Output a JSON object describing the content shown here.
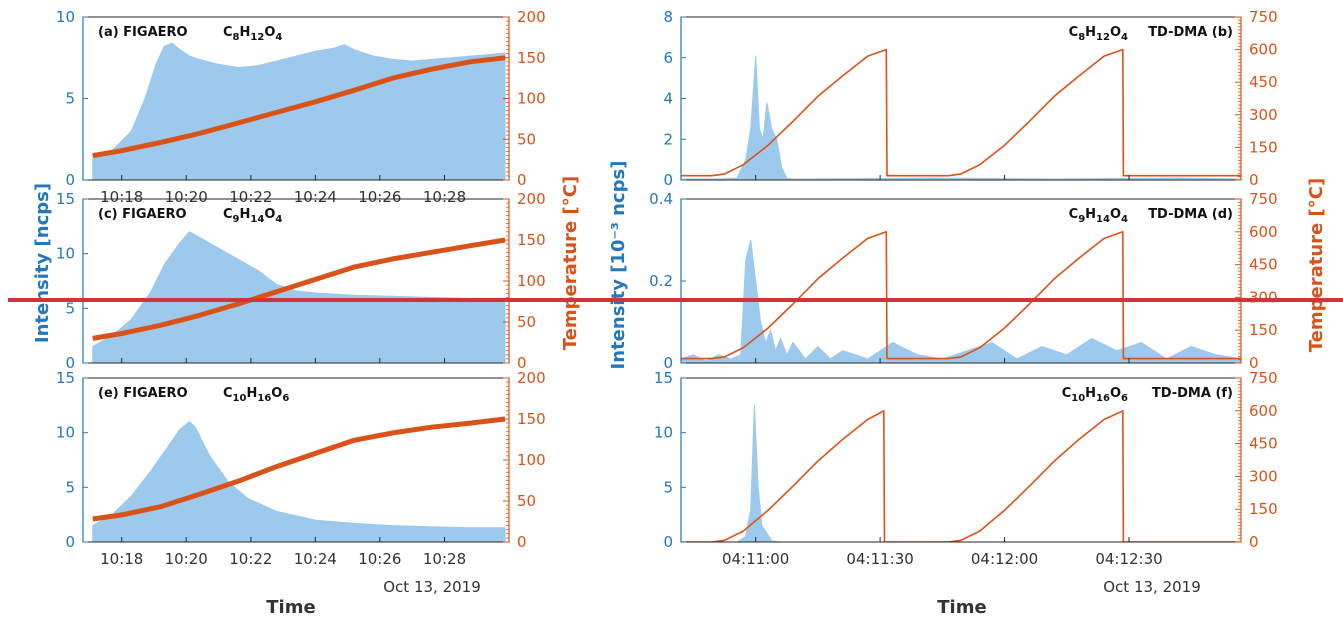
{
  "figure": {
    "ylabel_left": "Intensity [ncps]",
    "ylabel_right": "Temperature [°C]",
    "ylabel_mid": "Intensity [10⁻³ ncps]",
    "ylabel_right2": "Temperature [°C]",
    "xlabel_left": "Time",
    "xlabel_right": "Time",
    "date_left": "Oct 13, 2019",
    "date_right": "Oct 13, 2019",
    "colors": {
      "intensity": "#2477b8",
      "fill": "#9dcaec",
      "temperature": "#d95319",
      "overlay_line": "#d0343a"
    }
  },
  "chart_data": [
    {
      "id": "a",
      "type": "area",
      "label": "(a) FIGAERO",
      "formula": [
        "C",
        "8",
        "H",
        "12",
        "O",
        "4"
      ],
      "xlim": [
        10.28,
        10.5
      ],
      "x_ticks": [
        10.3,
        10.3333,
        10.3667,
        10.4,
        10.4333,
        10.4667
      ],
      "x_tick_labels": [
        "10:18",
        "10:20",
        "10:22",
        "10:24",
        "10:26",
        "10:28"
      ],
      "ylim": [
        0,
        10
      ],
      "y_ticks": [
        0,
        5,
        10
      ],
      "y2lim": [
        0,
        200
      ],
      "y2_ticks": [
        0,
        50,
        100,
        150,
        200
      ],
      "intensity": {
        "x": [
          10.285,
          10.295,
          10.305,
          10.312,
          10.318,
          10.322,
          10.326,
          10.33,
          10.335,
          10.34,
          10.35,
          10.36,
          10.37,
          10.38,
          10.39,
          10.4,
          10.41,
          10.415,
          10.42,
          10.43,
          10.44,
          10.45,
          10.46,
          10.47,
          10.48,
          10.49,
          10.498
        ],
        "y": [
          1.3,
          1.8,
          3.0,
          5.0,
          7.2,
          8.2,
          8.4,
          8.0,
          7.6,
          7.4,
          7.1,
          6.9,
          7.0,
          7.3,
          7.6,
          7.9,
          8.1,
          8.3,
          8.0,
          7.6,
          7.4,
          7.3,
          7.4,
          7.5,
          7.6,
          7.7,
          7.8
        ]
      },
      "temperature": {
        "x": [
          10.285,
          10.3,
          10.32,
          10.34,
          10.36,
          10.38,
          10.4,
          10.42,
          10.44,
          10.46,
          10.48,
          10.498
        ],
        "y": [
          30,
          36,
          46,
          57,
          70,
          83,
          96,
          110,
          125,
          136,
          145,
          150
        ]
      }
    },
    {
      "id": "c",
      "type": "area",
      "label": "(c) FIGAERO",
      "formula": [
        "C",
        "9",
        "H",
        "14",
        "O",
        "4"
      ],
      "xlim": [
        10.28,
        10.5
      ],
      "x_ticks": [
        10.3,
        10.3333,
        10.3667,
        10.4,
        10.4333,
        10.4667
      ],
      "x_tick_labels": [
        "",
        "",
        "",
        "",
        "",
        ""
      ],
      "ylim": [
        0,
        15
      ],
      "y_ticks": [
        0,
        5,
        10,
        15
      ],
      "y2lim": [
        0,
        200
      ],
      "y2_ticks": [
        0,
        50,
        100,
        150,
        200
      ],
      "intensity": {
        "x": [
          10.285,
          10.295,
          10.305,
          10.315,
          10.322,
          10.33,
          10.335,
          10.34,
          10.35,
          10.36,
          10.37,
          10.38,
          10.39,
          10.4,
          10.41,
          10.42,
          10.44,
          10.46,
          10.48,
          10.498
        ],
        "y": [
          1.5,
          2.5,
          4.0,
          6.5,
          9.0,
          11.0,
          12.0,
          11.5,
          10.5,
          9.5,
          8.5,
          7.2,
          6.6,
          6.4,
          6.3,
          6.2,
          6.1,
          6.0,
          5.9,
          5.8
        ]
      },
      "temperature": {
        "x": [
          10.285,
          10.3,
          10.32,
          10.34,
          10.36,
          10.38,
          10.4,
          10.42,
          10.44,
          10.46,
          10.48,
          10.498
        ],
        "y": [
          30,
          36,
          46,
          58,
          72,
          87,
          102,
          117,
          127,
          135,
          143,
          150
        ]
      }
    },
    {
      "id": "e",
      "type": "area",
      "label": "(e) FIGAERO",
      "formula": [
        "C",
        "10",
        "H",
        "16",
        "O",
        "6"
      ],
      "xlim": [
        10.28,
        10.5
      ],
      "x_ticks": [
        10.3,
        10.3333,
        10.3667,
        10.4,
        10.4333,
        10.4667
      ],
      "x_tick_labels": [
        "10:18",
        "10:20",
        "10:22",
        "10:24",
        "10:26",
        "10:28"
      ],
      "ylim": [
        0,
        15
      ],
      "y_ticks": [
        0,
        5,
        10,
        15
      ],
      "y2lim": [
        0,
        200
      ],
      "y2_ticks": [
        0,
        50,
        100,
        150,
        200
      ],
      "intensity": {
        "x": [
          10.285,
          10.295,
          10.305,
          10.315,
          10.325,
          10.33,
          10.335,
          10.338,
          10.345,
          10.355,
          10.365,
          10.38,
          10.4,
          10.42,
          10.44,
          10.46,
          10.48,
          10.498
        ],
        "y": [
          1.5,
          2.5,
          4.2,
          6.5,
          9.0,
          10.3,
          11.0,
          10.5,
          8.0,
          5.5,
          4.0,
          2.8,
          2.0,
          1.7,
          1.5,
          1.4,
          1.3,
          1.3
        ]
      },
      "temperature": {
        "x": [
          10.285,
          10.3,
          10.32,
          10.34,
          10.36,
          10.38,
          10.4,
          10.42,
          10.44,
          10.46,
          10.48,
          10.498
        ],
        "y": [
          28,
          33,
          43,
          58,
          74,
          92,
          108,
          124,
          133,
          140,
          145,
          150
        ]
      }
    },
    {
      "id": "b",
      "type": "area",
      "label": "TD-DMA (b)",
      "formula": [
        "C",
        "8",
        "H",
        "12",
        "O",
        "4"
      ],
      "xlim": [
        245,
        290
      ],
      "x_ticks": [
        251,
        261,
        271,
        281
      ],
      "x_tick_labels": [
        "",
        "",
        "",
        ""
      ],
      "ylim": [
        0,
        8
      ],
      "y_ticks": [
        0,
        2,
        4,
        6,
        8
      ],
      "y2lim": [
        0,
        750
      ],
      "y2_ticks": [
        0,
        150,
        300,
        450,
        600,
        750
      ],
      "intensity": {
        "x": [
          245,
          248,
          249.5,
          250.2,
          250.6,
          251.0,
          251.3,
          251.6,
          251.9,
          252.3,
          252.7,
          253.1,
          253.5,
          254.0,
          255,
          265,
          275,
          285,
          290
        ],
        "y": [
          0.05,
          0.05,
          0.1,
          1.0,
          2.5,
          6.1,
          2.5,
          2.0,
          3.8,
          2.5,
          2.0,
          0.6,
          0.1,
          0.05,
          0.05,
          0.1,
          0.05,
          0.1,
          0.05
        ],
        "tail": "~0.05 until 290"
      },
      "temperature": {
        "x": [
          245,
          247.5,
          248.5,
          250,
          252,
          254,
          256,
          258,
          260,
          261.5,
          261.55,
          266.5,
          267.5,
          269,
          271,
          273,
          275,
          277,
          279,
          280.5,
          280.55,
          290
        ],
        "y": [
          20,
          20,
          28,
          70,
          160,
          270,
          385,
          480,
          570,
          600,
          20,
          20,
          28,
          70,
          160,
          270,
          385,
          480,
          570,
          600,
          20,
          20
        ]
      }
    },
    {
      "id": "d",
      "type": "area",
      "label": "TD-DMA (d)",
      "formula": [
        "C",
        "9",
        "H",
        "14",
        "O",
        "4"
      ],
      "xlim": [
        245,
        290
      ],
      "x_ticks": [
        251,
        261,
        271,
        281
      ],
      "x_tick_labels": [
        "",
        "",
        "",
        ""
      ],
      "ylim": [
        0,
        0.4
      ],
      "y_ticks": [
        0,
        0.2,
        0.4
      ],
      "y2lim": [
        0,
        750
      ],
      "y2_ticks": [
        0,
        150,
        300,
        450,
        600,
        750
      ],
      "intensity": {
        "x": [
          245,
          246,
          247,
          248,
          249,
          249.8,
          250.2,
          250.6,
          251.0,
          251.4,
          251.8,
          252.2,
          252.6,
          253.0,
          253.5,
          254,
          255,
          256,
          257,
          258,
          260,
          262,
          264,
          266,
          268,
          270,
          272,
          274,
          276,
          278,
          280,
          282,
          284,
          286,
          288,
          290
        ],
        "y": [
          0.01,
          0.02,
          0.005,
          0.02,
          0.01,
          0.02,
          0.25,
          0.3,
          0.2,
          0.1,
          0.05,
          0.08,
          0.03,
          0.06,
          0.02,
          0.05,
          0.01,
          0.04,
          0.01,
          0.03,
          0.01,
          0.05,
          0.02,
          0.01,
          0.03,
          0.05,
          0.01,
          0.04,
          0.02,
          0.06,
          0.03,
          0.05,
          0.01,
          0.04,
          0.02,
          0.01
        ]
      },
      "temperature": {
        "x": [
          245,
          247.5,
          248.5,
          250,
          252,
          254,
          256,
          258,
          260,
          261.5,
          261.55,
          266.5,
          267.5,
          269,
          271,
          273,
          275,
          277,
          279,
          280.5,
          280.55,
          290
        ],
        "y": [
          20,
          20,
          28,
          70,
          160,
          270,
          385,
          480,
          570,
          600,
          20,
          20,
          28,
          70,
          160,
          270,
          385,
          480,
          570,
          600,
          20,
          20
        ]
      }
    },
    {
      "id": "f",
      "type": "area",
      "label": "TD-DMA (f)",
      "formula": [
        "C",
        "10",
        "H",
        "16",
        "O",
        "6"
      ],
      "xlim": [
        245,
        290
      ],
      "x_ticks": [
        251,
        261,
        271,
        281
      ],
      "x_tick_labels": [
        "04:11:00",
        "04:11:30",
        "04:12:00",
        "04:12:30"
      ],
      "ylim": [
        0,
        15
      ],
      "y_ticks": [
        0,
        5,
        10,
        15
      ],
      "y2lim": [
        0,
        750
      ],
      "y2_ticks": [
        0,
        150,
        300,
        450,
        600,
        750
      ],
      "intensity": {
        "x": [
          245,
          249.5,
          250.2,
          250.6,
          250.9,
          251.2,
          251.5,
          251.9,
          252.3,
          253,
          290
        ],
        "y": [
          0.0,
          0.0,
          0.5,
          3.0,
          12.5,
          5.0,
          1.5,
          0.8,
          0.1,
          0.0,
          0.0
        ]
      },
      "temperature": {
        "x": [
          245,
          247.5,
          248.5,
          250,
          252,
          254,
          256,
          258,
          260,
          261.3,
          261.35,
          266.5,
          267.5,
          269,
          271,
          273,
          275,
          277,
          279,
          280.5,
          280.55,
          290
        ],
        "y": [
          0,
          0,
          8,
          50,
          145,
          255,
          370,
          470,
          560,
          600,
          0,
          0,
          8,
          50,
          145,
          255,
          370,
          470,
          560,
          600,
          0,
          0
        ]
      }
    }
  ]
}
